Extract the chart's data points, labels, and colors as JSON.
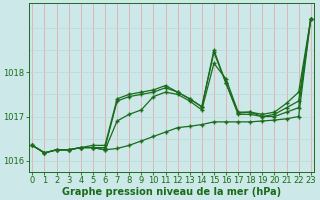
{
  "x": [
    0,
    1,
    2,
    3,
    4,
    5,
    6,
    7,
    8,
    9,
    10,
    11,
    12,
    13,
    14,
    15,
    16,
    17,
    18,
    19,
    20,
    21,
    22,
    23
  ],
  "series1": [
    1016.35,
    1016.18,
    1016.25,
    1016.25,
    1016.3,
    1016.3,
    1016.25,
    1016.28,
    1016.35,
    1016.45,
    1016.55,
    1016.65,
    1016.75,
    1016.78,
    1016.82,
    1016.88,
    1016.88,
    1016.88,
    1016.88,
    1016.9,
    1016.92,
    1016.95,
    1017.0,
    1019.2
  ],
  "series2": [
    1016.35,
    1016.18,
    1016.25,
    1016.25,
    1016.3,
    1016.3,
    1016.25,
    1016.9,
    1017.05,
    1017.15,
    1017.45,
    1017.55,
    1017.5,
    1017.35,
    1017.15,
    1018.2,
    1017.85,
    1017.1,
    1017.1,
    1017.0,
    1017.0,
    1017.1,
    1017.2,
    1019.2
  ],
  "series3": [
    1016.35,
    1016.18,
    1016.25,
    1016.25,
    1016.3,
    1016.3,
    1016.3,
    1017.35,
    1017.45,
    1017.5,
    1017.55,
    1017.65,
    1017.55,
    1017.4,
    1017.22,
    1018.45,
    1017.75,
    1017.05,
    1017.05,
    1017.0,
    1017.05,
    1017.2,
    1017.35,
    1019.2
  ],
  "series4": [
    1016.35,
    1016.18,
    1016.25,
    1016.25,
    1016.3,
    1016.35,
    1016.35,
    1017.4,
    1017.5,
    1017.55,
    1017.6,
    1017.7,
    1017.55,
    1017.4,
    1017.22,
    1018.5,
    1017.75,
    1017.08,
    1017.1,
    1017.05,
    1017.1,
    1017.3,
    1017.55,
    1019.2
  ],
  "line_color": "#1a6b1a",
  "bg_color": "#cce8e8",
  "grid_color_v": "#e8a0a0",
  "grid_color_h": "#b8d8d8",
  "xlabel": "Graphe pression niveau de la mer (hPa)",
  "ylim_min": 1015.75,
  "ylim_max": 1019.55,
  "yticks": [
    1016,
    1017,
    1018
  ],
  "tick_fontsize": 6.0,
  "label_fontsize": 7.0
}
